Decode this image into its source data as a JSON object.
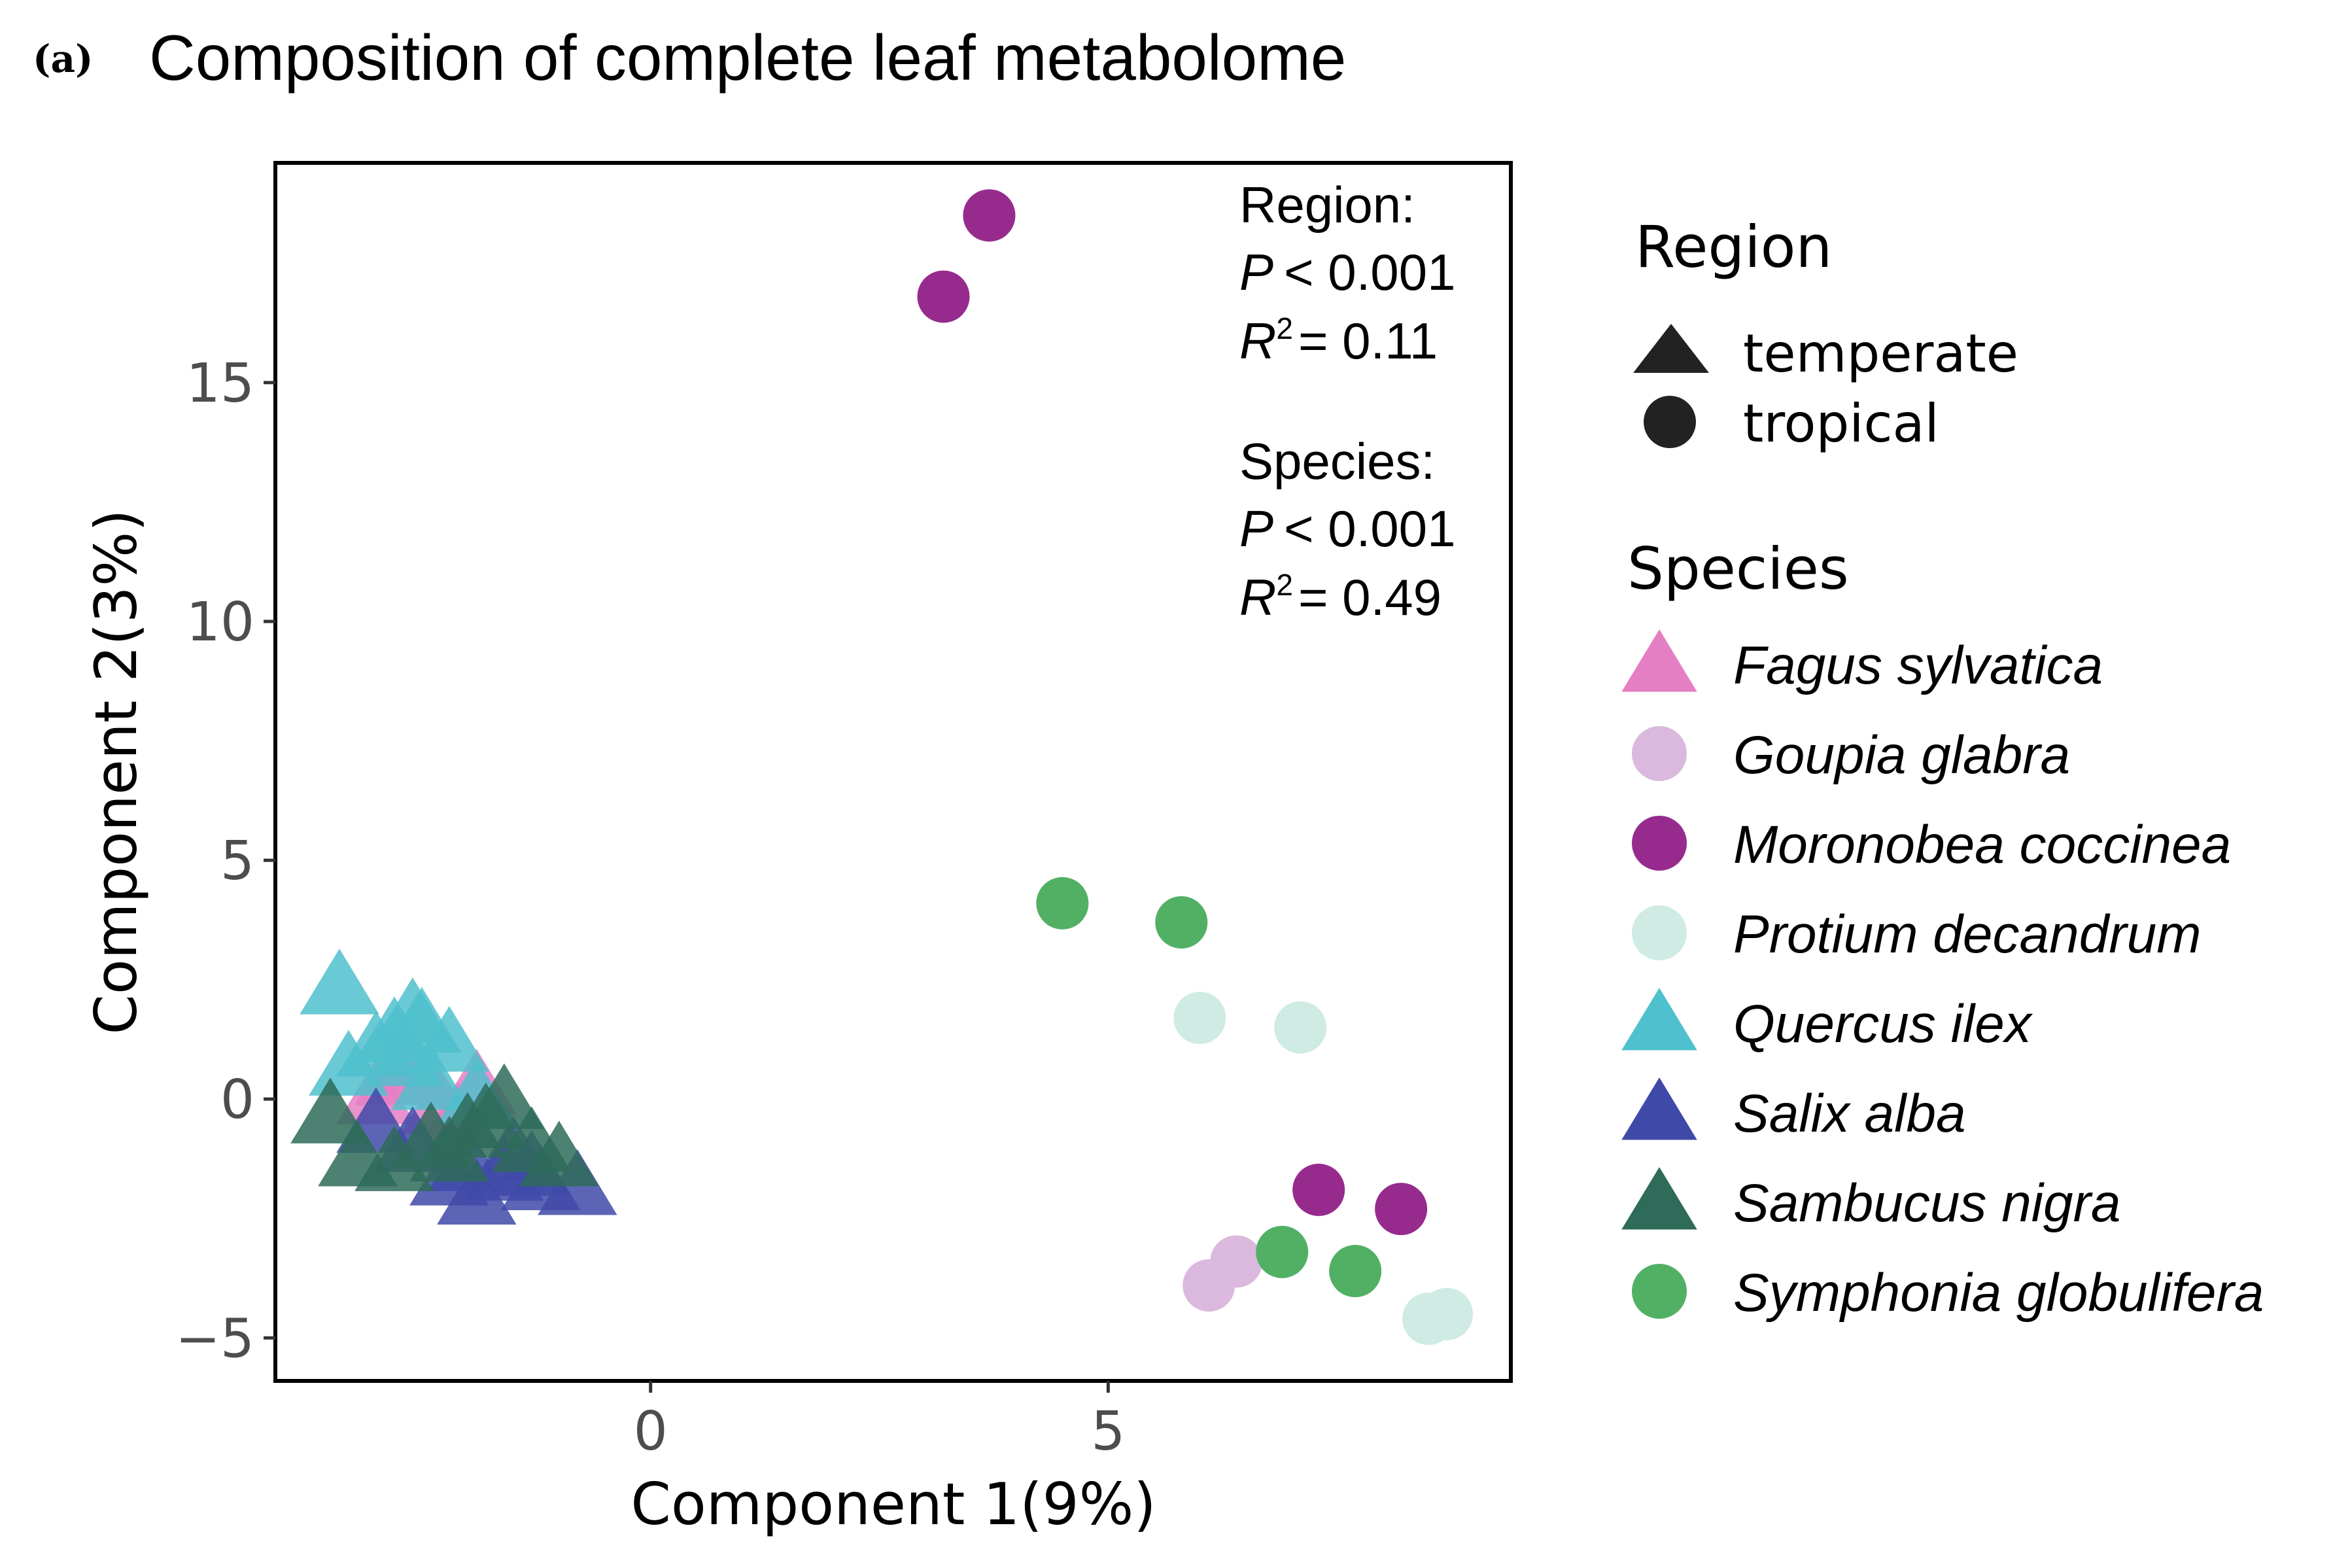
{
  "panel_label": "(a)",
  "chart_data": {
    "type": "scatter",
    "title": "Composition of complete leaf metabolome",
    "xlabel": "Component 1(9%)",
    "ylabel": "Component 2(3%)",
    "xlim": [
      -4.1,
      9.4
    ],
    "ylim": [
      -5.9,
      19.6
    ],
    "xticks": [
      0,
      5
    ],
    "xtick_labels": [
      "0",
      "5"
    ],
    "yticks": [
      -5,
      0,
      5,
      10,
      15
    ],
    "ytick_labels": [
      "−5",
      "0",
      "5",
      "10",
      "15"
    ],
    "grid": false,
    "legend_position": "right",
    "stats": {
      "region_heading": "Region:",
      "region_p_symbol": "P",
      "region_p": "< 0.001",
      "region_r_symbol": "R",
      "region_r_sup": "2",
      "region_r": "= 0.11",
      "species_heading": "Species:",
      "species_p_symbol": "P",
      "species_p": "< 0.001",
      "species_r_symbol": "R",
      "species_r_sup": "2",
      "species_r": "= 0.49"
    },
    "shape_legend": {
      "title": "Region",
      "items": [
        {
          "label": "temperate",
          "shape": "triangle"
        },
        {
          "label": "tropical",
          "shape": "circle"
        }
      ]
    },
    "color_legend": {
      "title": "Species"
    },
    "series": [
      {
        "name": "Fagus sylvatica",
        "color": "#e57fc4",
        "shape": "triangle",
        "region": "temperate",
        "points": [
          [
            -2.8,
            0.4
          ],
          [
            -3.0,
            0.0
          ],
          [
            -2.3,
            -0.2
          ],
          [
            -1.9,
            0.2
          ],
          [
            -2.6,
            0.6
          ],
          [
            -2.1,
            -0.5
          ]
        ]
      },
      {
        "name": "Goupia glabra",
        "color": "#dbb9de",
        "shape": "circle",
        "region": "tropical",
        "points": [
          [
            6.1,
            -3.9
          ],
          [
            6.4,
            -3.4
          ]
        ]
      },
      {
        "name": "Moronobea coccinea",
        "color": "#962b8d",
        "shape": "circle",
        "region": "tropical",
        "points": [
          [
            3.7,
            18.5
          ],
          [
            3.2,
            16.8
          ],
          [
            7.3,
            -1.9
          ],
          [
            8.2,
            -2.3
          ]
        ]
      },
      {
        "name": "Protium decandrum",
        "color": "#cfebe4",
        "shape": "circle",
        "region": "tropical",
        "points": [
          [
            6.0,
            1.7
          ],
          [
            7.1,
            1.5
          ],
          [
            8.5,
            -4.6
          ],
          [
            8.7,
            -4.5
          ]
        ]
      },
      {
        "name": "Quercus ilex",
        "color": "#4fc0cd",
        "shape": "triangle",
        "region": "temperate",
        "points": [
          [
            -3.4,
            2.3
          ],
          [
            -2.8,
            1.3
          ],
          [
            -2.5,
            1.5
          ],
          [
            -2.2,
            1.1
          ],
          [
            -2.7,
            0.8
          ],
          [
            -3.3,
            0.6
          ],
          [
            -2.4,
            0.3
          ],
          [
            -1.9,
            0.0
          ],
          [
            -2.6,
            1.7
          ],
          [
            -3.0,
            1.0
          ]
        ]
      },
      {
        "name": "Salix alba",
        "color": "#3f4aa8",
        "shape": "triangle",
        "region": "temperate",
        "points": [
          [
            -3.0,
            -0.6
          ],
          [
            -2.6,
            -1.0
          ],
          [
            -2.0,
            -1.4
          ],
          [
            -1.6,
            -1.6
          ],
          [
            -1.2,
            -1.8
          ],
          [
            -0.8,
            -1.9
          ],
          [
            -1.9,
            -2.1
          ],
          [
            -1.5,
            -1.2
          ],
          [
            -1.3,
            -1.5
          ],
          [
            -2.2,
            -1.7
          ]
        ]
      },
      {
        "name": "Sambucus nigra",
        "color": "#2e6b59",
        "shape": "triangle",
        "region": "temperate",
        "points": [
          [
            -3.5,
            -0.4
          ],
          [
            -3.2,
            -1.3
          ],
          [
            -2.8,
            -1.4
          ],
          [
            -2.4,
            -0.9
          ],
          [
            -2.0,
            -0.7
          ],
          [
            -1.6,
            -0.1
          ],
          [
            -1.3,
            -1.0
          ],
          [
            -2.2,
            -1.2
          ],
          [
            -1.0,
            -1.3
          ],
          [
            -1.8,
            -0.5
          ]
        ]
      },
      {
        "name": "Symphonia globulifera",
        "color": "#52b065",
        "shape": "circle",
        "region": "tropical",
        "points": [
          [
            4.5,
            4.1
          ],
          [
            5.8,
            3.7
          ],
          [
            6.9,
            -3.2
          ],
          [
            7.7,
            -3.6
          ]
        ]
      }
    ]
  }
}
